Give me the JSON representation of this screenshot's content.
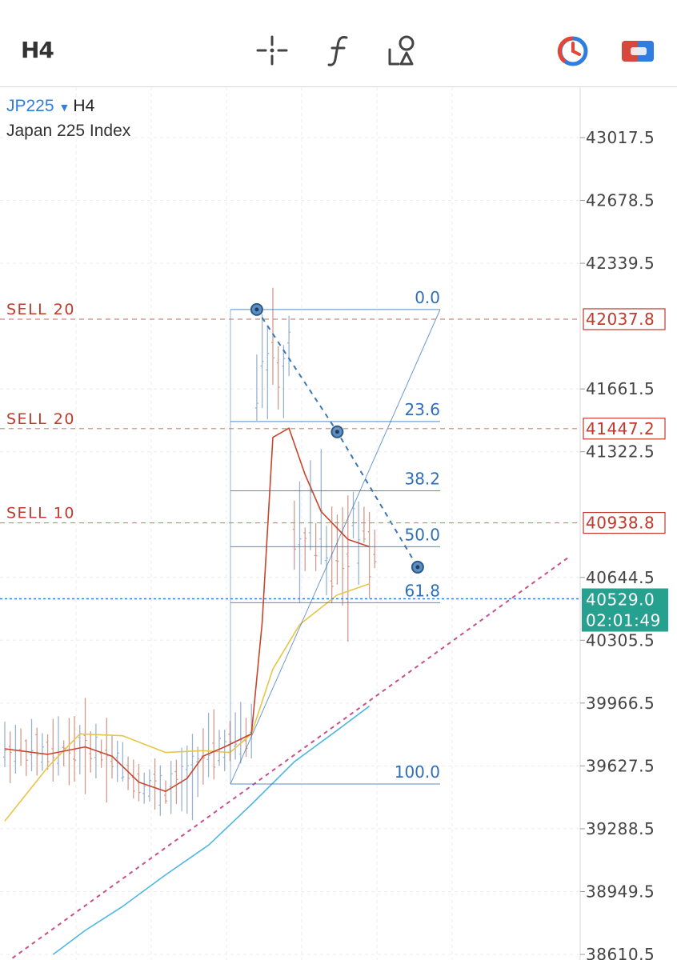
{
  "toolbar": {
    "timeframe": "H4",
    "icons": [
      "crosshair-icon",
      "function-icon",
      "drawing-tools-icon",
      "trade-timer-icon",
      "account-toggle-icon"
    ],
    "colors": {
      "timer_red": "#e0473a",
      "timer_blue": "#2f7de1"
    }
  },
  "symbol": {
    "ticker": "JP225",
    "timeframe": "H4",
    "name": "Japan 225 Index"
  },
  "chart_data": {
    "type": "candlestick",
    "y_axis": {
      "range": [
        38610.5,
        43017.5
      ],
      "ticks": [
        "43017.5",
        "42678.5",
        "42339.5",
        "41661.5",
        "41322.5",
        "40644.5",
        "40305.5",
        "39966.5",
        "39627.5",
        "39288.5",
        "38949.5",
        "38610.5"
      ]
    },
    "current_price": {
      "value": "40529.0",
      "countdown": "02:01:49",
      "color": "#26a08f"
    },
    "orders": [
      {
        "label": "SELL 20",
        "price": "42037.8"
      },
      {
        "label": "SELL 20",
        "price": "41447.2"
      },
      {
        "label": "SELL 10",
        "price": "40938.8"
      }
    ],
    "fibonacci": {
      "high": 42090,
      "low": 39530,
      "levels": [
        {
          "label": "0.0",
          "price": 42090
        },
        {
          "label": "23.6",
          "price": 41486
        },
        {
          "label": "38.2",
          "price": 41112
        },
        {
          "label": "50.0",
          "price": 40810
        },
        {
          "label": "61.8",
          "price": 40508
        },
        {
          "label": "100.0",
          "price": 39530
        }
      ]
    },
    "trend_projection": [
      {
        "bar": 47,
        "price": 42090
      },
      {
        "bar": 62,
        "price": 41430
      },
      {
        "bar": 77,
        "price": 40700
      }
    ],
    "ma_fast": [
      [
        0,
        39720
      ],
      [
        8,
        39690
      ],
      [
        15,
        39730
      ],
      [
        20,
        39680
      ],
      [
        25,
        39540
      ],
      [
        30,
        39490
      ],
      [
        34,
        39560
      ],
      [
        37,
        39680
      ],
      [
        41,
        39730
      ],
      [
        46,
        39800
      ],
      [
        48,
        40400
      ],
      [
        50,
        41400
      ],
      [
        53,
        41450
      ],
      [
        56,
        41200
      ],
      [
        59,
        41000
      ],
      [
        64,
        40850
      ],
      [
        68,
        40810
      ]
    ],
    "ma_medium": [
      [
        0,
        39330
      ],
      [
        8,
        39620
      ],
      [
        14,
        39800
      ],
      [
        22,
        39790
      ],
      [
        30,
        39700
      ],
      [
        37,
        39710
      ],
      [
        42,
        39700
      ],
      [
        46,
        39800
      ],
      [
        50,
        40150
      ],
      [
        55,
        40390
      ],
      [
        62,
        40550
      ],
      [
        68,
        40610
      ]
    ],
    "ma_slow": [
      [
        9,
        38610
      ],
      [
        15,
        38740
      ],
      [
        22,
        38870
      ],
      [
        30,
        39040
      ],
      [
        38,
        39200
      ],
      [
        46,
        39420
      ],
      [
        54,
        39650
      ],
      [
        62,
        39820
      ],
      [
        68,
        39950
      ]
    ],
    "support_line": [
      [
        -1,
        38540
      ],
      [
        105,
        40750
      ]
    ],
    "colors": {
      "candle_up": "#9ab2d0",
      "candle_down": "#d39a8e",
      "ma_fast": "#c8442b",
      "ma_medium": "#e8c547",
      "ma_slow": "#4db6e3",
      "support": "#c94f8a",
      "fib": "#2f6fb8",
      "order": "#c0392b"
    }
  }
}
